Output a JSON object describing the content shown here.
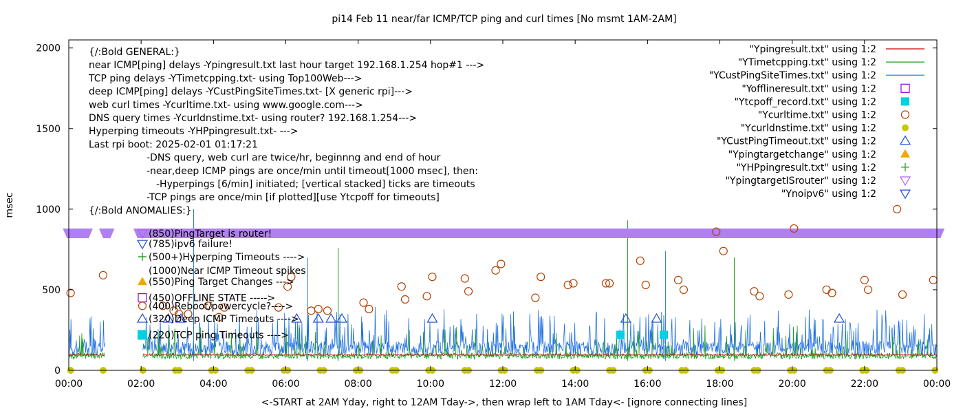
{
  "chart_data": {
    "type": "line",
    "title": "pi14 Feb 11  near/far ICMP/TCP ping and curl times [No msmt 1AM-2AM]",
    "xlabel": "<-START at 2AM Yday, right to 12AM Tday->, then wrap left to 1AM Tday<- [ignore connecting lines]",
    "ylabel": "msec",
    "xlim": [
      0,
      24
    ],
    "ylim": [
      0,
      2050
    ],
    "x_ticks": [
      {
        "v": 0,
        "label": "00:00"
      },
      {
        "v": 2,
        "label": "02:00"
      },
      {
        "v": 4,
        "label": "04:00"
      },
      {
        "v": 6,
        "label": "06:00"
      },
      {
        "v": 8,
        "label": "08:00"
      },
      {
        "v": 10,
        "label": "10:00"
      },
      {
        "v": 12,
        "label": "12:00"
      },
      {
        "v": 14,
        "label": "14:00"
      },
      {
        "v": 16,
        "label": "16:00"
      },
      {
        "v": 18,
        "label": "18:00"
      },
      {
        "v": 20,
        "label": "20:00"
      },
      {
        "v": 22,
        "label": "22:00"
      },
      {
        "v": 24,
        "label": "00:00"
      }
    ],
    "y_ticks": [
      {
        "v": 0,
        "label": "0"
      },
      {
        "v": 500,
        "label": "500"
      },
      {
        "v": 1000,
        "label": "1000"
      },
      {
        "v": 1500,
        "label": "1500"
      },
      {
        "v": 2000,
        "label": "2000"
      }
    ],
    "annotation_lines": [
      "{/:Bold GENERAL:}",
      "near ICMP[ping] delays -Ypingresult.txt last hour target 192.168.1.254 hop#1 --->",
      "TCP ping delays -YTimetcpping.txt- using Top100Web--->",
      "deep ICMP[ping] delays -YCustPingSiteTimes.txt- [X generic rpi]--->",
      "web curl times -Ycurltime.txt- using www.google.com--->",
      "DNS query times -Ycurldnstime.txt- using router? 192.168.1.254--->",
      "Hyperping timeouts -YHPpingresult.txt- --->",
      "Last rpi boot: 2025-02-01 01:17:21",
      "-DNS query, web curl are twice/hr, beginnng and end of hour",
      "-near,deep ICMP pings are once/min until timeout[1000 msec], then:",
      "-Hyperpings [6/min] initiated; [vertical stacked] ticks are timeouts",
      "-TCP pings are once/min [if plotted][use Ytcpoff for timeouts]",
      "{/:Bold ANOMALIES:}"
    ],
    "anomaly_labels": [
      {
        "y": 850,
        "text": "(850)PingTarget is router!"
      },
      {
        "y": 785,
        "text": "(785)ipv6 failure!"
      },
      {
        "y": 705,
        "text": "(500+)Hyperping Timeouts ---->"
      },
      {
        "y": 620,
        "text": "(1000)Near ICMP Timeout spikes"
      },
      {
        "y": 550,
        "text": "(550)Ping Target Changes --->"
      },
      {
        "y": 450,
        "text": "(450)OFFLINE STATE ----->"
      },
      {
        "y": 400,
        "text": "(400)Reboot/powercycle?---->"
      },
      {
        "y": 320,
        "text": "(320)Deep ICMP Timeouts ---->"
      },
      {
        "y": 220,
        "text": "(220)TCP ping Timeouts ---->"
      }
    ],
    "legend_position": "top-right",
    "legend": [
      {
        "label": "\"Ypingresult.txt\" using 1:2",
        "marker": "line",
        "color": "#cc0000"
      },
      {
        "label": "\"YTimetcpping.txt\" using 1:2",
        "marker": "line",
        "color": "#1a9e1a"
      },
      {
        "label": "\"YCustPingSiteTimes.txt\" using 1:2",
        "marker": "line",
        "color": "#1f6fe0"
      },
      {
        "label": "\"Yofflineresult.txt\" using 1:2",
        "marker": "open-square",
        "color": "#9400d3"
      },
      {
        "label": "\"Ytcpoff_record.txt\" using 1:2",
        "marker": "filled-square",
        "color": "#00d0e0"
      },
      {
        "label": "\"Ycurltime.txt\" using 1:2",
        "marker": "open-circle",
        "color": "#b34000"
      },
      {
        "label": "\"Ycurldnstime.txt\" using 1:2",
        "marker": "filled-circle",
        "color": "#c8c800"
      },
      {
        "label": "\"YCustPingTimeout.txt\" using 1:2",
        "marker": "open-triangle-up",
        "color": "#1f4fd0"
      },
      {
        "label": "\"Ypingtargetchange\" using 1:2",
        "marker": "filled-triangle-up",
        "color": "#f0a800"
      },
      {
        "label": "\"YHPpingresult.txt\" using 1:2",
        "marker": "plus",
        "color": "#1a9e1a"
      },
      {
        "label": "\"YpingtargetISrouter\" using 1:2",
        "marker": "open-triangle-down",
        "color": "#b060f0"
      },
      {
        "label": "\"Ynoipv6\" using 1:2",
        "marker": "open-triangle-down",
        "color": "#1f4fd0"
      }
    ],
    "router_band": {
      "y": 850,
      "color": "#b080f0",
      "segments": [
        [
          -0.05,
          0.55
        ],
        [
          0.95,
          1.15
        ],
        [
          1.9,
          24.1
        ]
      ]
    },
    "series": [
      {
        "name": "Ycurltime.txt",
        "marker": "open-circle",
        "color": "#b34000",
        "points": [
          [
            0.05,
            480
          ],
          [
            0.95,
            590
          ],
          [
            2.6,
            400
          ],
          [
            2.9,
            370
          ],
          [
            3.05,
            350
          ],
          [
            3.3,
            350
          ],
          [
            3.85,
            400
          ],
          [
            4.15,
            330
          ],
          [
            4.3,
            390
          ],
          [
            5.8,
            390
          ],
          [
            6.05,
            520
          ],
          [
            6.15,
            580
          ],
          [
            6.7,
            370
          ],
          [
            6.9,
            380
          ],
          [
            7.15,
            370
          ],
          [
            8.15,
            420
          ],
          [
            8.3,
            380
          ],
          [
            9.2,
            520
          ],
          [
            9.3,
            440
          ],
          [
            9.9,
            460
          ],
          [
            10.05,
            580
          ],
          [
            10.95,
            570
          ],
          [
            11.05,
            490
          ],
          [
            11.8,
            620
          ],
          [
            11.95,
            660
          ],
          [
            12.9,
            450
          ],
          [
            13.05,
            580
          ],
          [
            13.8,
            530
          ],
          [
            13.95,
            540
          ],
          [
            14.85,
            540
          ],
          [
            14.95,
            540
          ],
          [
            15.8,
            680
          ],
          [
            15.95,
            530
          ],
          [
            16.85,
            560
          ],
          [
            17,
            500
          ],
          [
            17.9,
            860
          ],
          [
            18.1,
            740
          ],
          [
            18.95,
            490
          ],
          [
            19.1,
            460
          ],
          [
            19.9,
            470
          ],
          [
            20.05,
            880
          ],
          [
            20.95,
            500
          ],
          [
            21.1,
            480
          ],
          [
            22.0,
            560
          ],
          [
            22.1,
            500
          ],
          [
            22.9,
            1000
          ],
          [
            23.05,
            470
          ],
          [
            23.9,
            560
          ]
        ]
      },
      {
        "name": "Ycurldnstime.txt",
        "marker": "filled-circle",
        "color": "#c8c800",
        "points": [
          [
            0.05,
            0
          ],
          [
            0.95,
            0
          ],
          [
            2.05,
            0
          ],
          [
            2.95,
            0
          ],
          [
            3.05,
            0
          ],
          [
            3.95,
            0
          ],
          [
            4.05,
            0
          ],
          [
            4.95,
            0
          ],
          [
            5.05,
            0
          ],
          [
            5.95,
            0
          ],
          [
            6.05,
            0
          ],
          [
            6.95,
            0
          ],
          [
            7.05,
            0
          ],
          [
            7.95,
            0
          ],
          [
            8.05,
            0
          ],
          [
            8.95,
            0
          ],
          [
            9.05,
            0
          ],
          [
            9.95,
            0
          ],
          [
            10.05,
            0
          ],
          [
            10.95,
            0
          ],
          [
            11.05,
            0
          ],
          [
            11.95,
            0
          ],
          [
            12.05,
            0
          ],
          [
            12.95,
            0
          ],
          [
            13.05,
            0
          ],
          [
            13.95,
            0
          ],
          [
            14.05,
            0
          ],
          [
            14.95,
            0
          ],
          [
            15.05,
            0
          ],
          [
            15.95,
            0
          ],
          [
            16.05,
            0
          ],
          [
            16.95,
            0
          ],
          [
            17.05,
            0
          ],
          [
            17.95,
            0
          ],
          [
            18.05,
            0
          ],
          [
            18.95,
            0
          ],
          [
            19.05,
            0
          ],
          [
            19.95,
            0
          ],
          [
            20.05,
            0
          ],
          [
            20.95,
            0
          ],
          [
            21.05,
            0
          ],
          [
            21.95,
            0
          ],
          [
            22.05,
            0
          ],
          [
            22.95,
            0
          ],
          [
            23.05,
            0
          ],
          [
            23.95,
            0
          ]
        ]
      },
      {
        "name": "YCustPingTimeout.txt",
        "marker": "open-triangle-up",
        "color": "#1f4fd0",
        "points": [
          [
            2.75,
            320
          ],
          [
            3.1,
            320
          ],
          [
            6.3,
            320
          ],
          [
            6.9,
            320
          ],
          [
            7.25,
            320
          ],
          [
            7.55,
            320
          ],
          [
            10.05,
            320
          ],
          [
            15.4,
            320
          ],
          [
            16.25,
            320
          ],
          [
            21.3,
            320
          ]
        ]
      },
      {
        "name": "Ytcpoff_record.txt",
        "marker": "filled-square",
        "color": "#00d0e0",
        "points": [
          [
            15.25,
            220
          ],
          [
            16.45,
            220
          ]
        ]
      }
    ]
  }
}
